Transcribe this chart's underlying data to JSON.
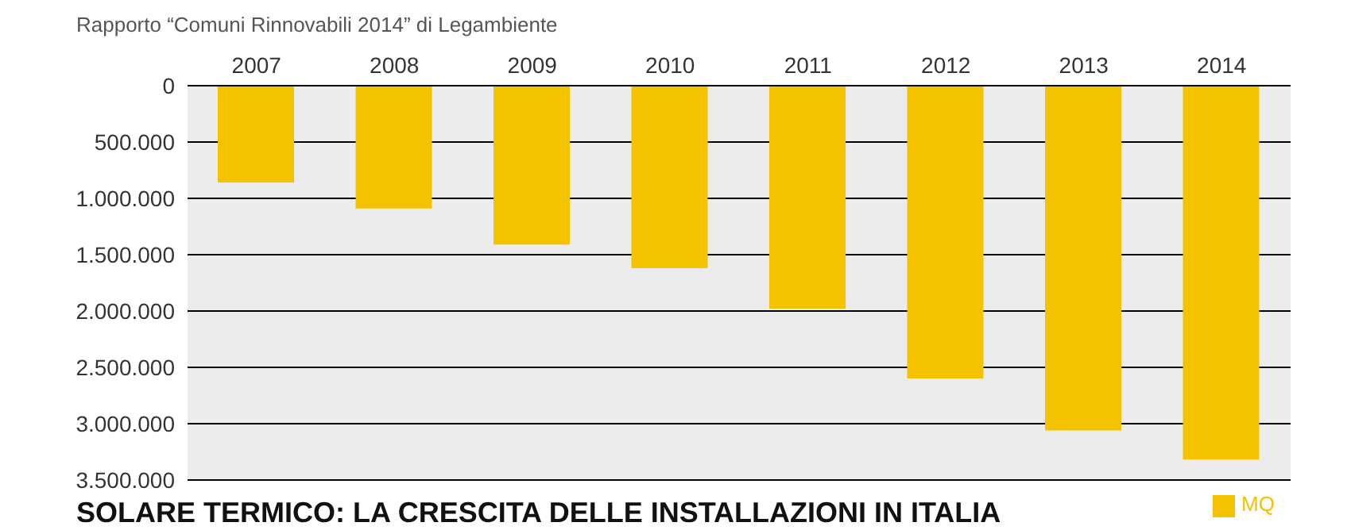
{
  "chart_data": {
    "type": "bar",
    "title": "SOLARE TERMICO: LA CRESCITA DELLE INSTALLAZIONI IN ITALIA",
    "annotations": [
      "Rapporto “Comuni Rinnovabili 2014” di Legambiente"
    ],
    "categories": [
      "2007",
      "2008",
      "2009",
      "2010",
      "2011",
      "2012",
      "2013",
      "2014"
    ],
    "series": [
      {
        "name": "MQ",
        "color": "#f5c200",
        "values": [
          860000,
          1090000,
          1410000,
          1620000,
          1980000,
          2600000,
          3060000,
          3320000
        ]
      }
    ],
    "ylim": [
      3500000,
      0
    ],
    "yticks": [
      {
        "value": 0,
        "label": "0"
      },
      {
        "value": 500000,
        "label": "500.000"
      },
      {
        "value": 1000000,
        "label": "1.000.000"
      },
      {
        "value": 1500000,
        "label": "1.500.000"
      },
      {
        "value": 2000000,
        "label": "2.000.000"
      },
      {
        "value": 2500000,
        "label": "2.500.000"
      },
      {
        "value": 3000000,
        "label": "3.000.000"
      },
      {
        "value": 3500000,
        "label": "3.500.000"
      }
    ],
    "grid": "y",
    "legend": "bottom right"
  }
}
